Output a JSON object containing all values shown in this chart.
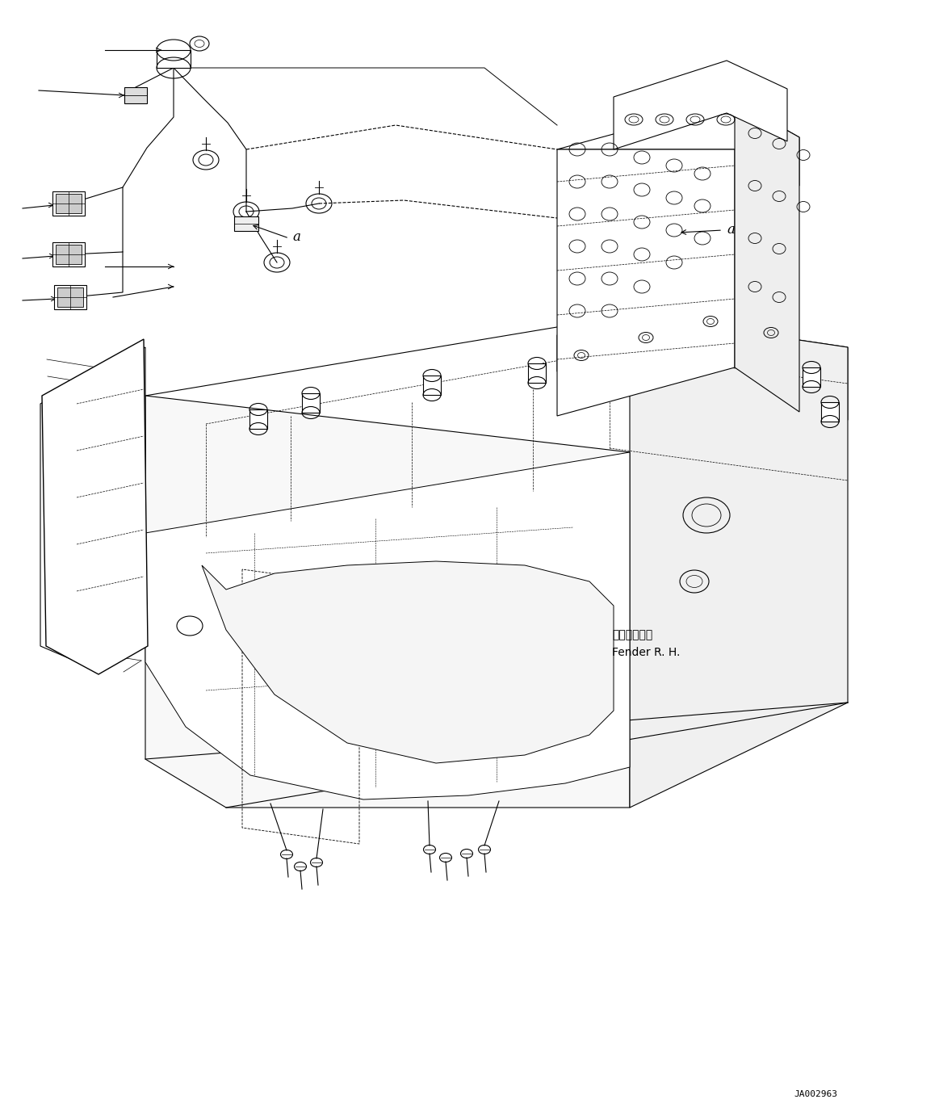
{
  "figure_width": 11.63,
  "figure_height": 13.77,
  "dpi": 100,
  "bg_color": "#ffffff",
  "line_color": "#000000",
  "diagram_id": "JA002963",
  "label_fender": "フェンダ　右",
  "label_fender_en": "Fender R. H.",
  "label_a": "a"
}
